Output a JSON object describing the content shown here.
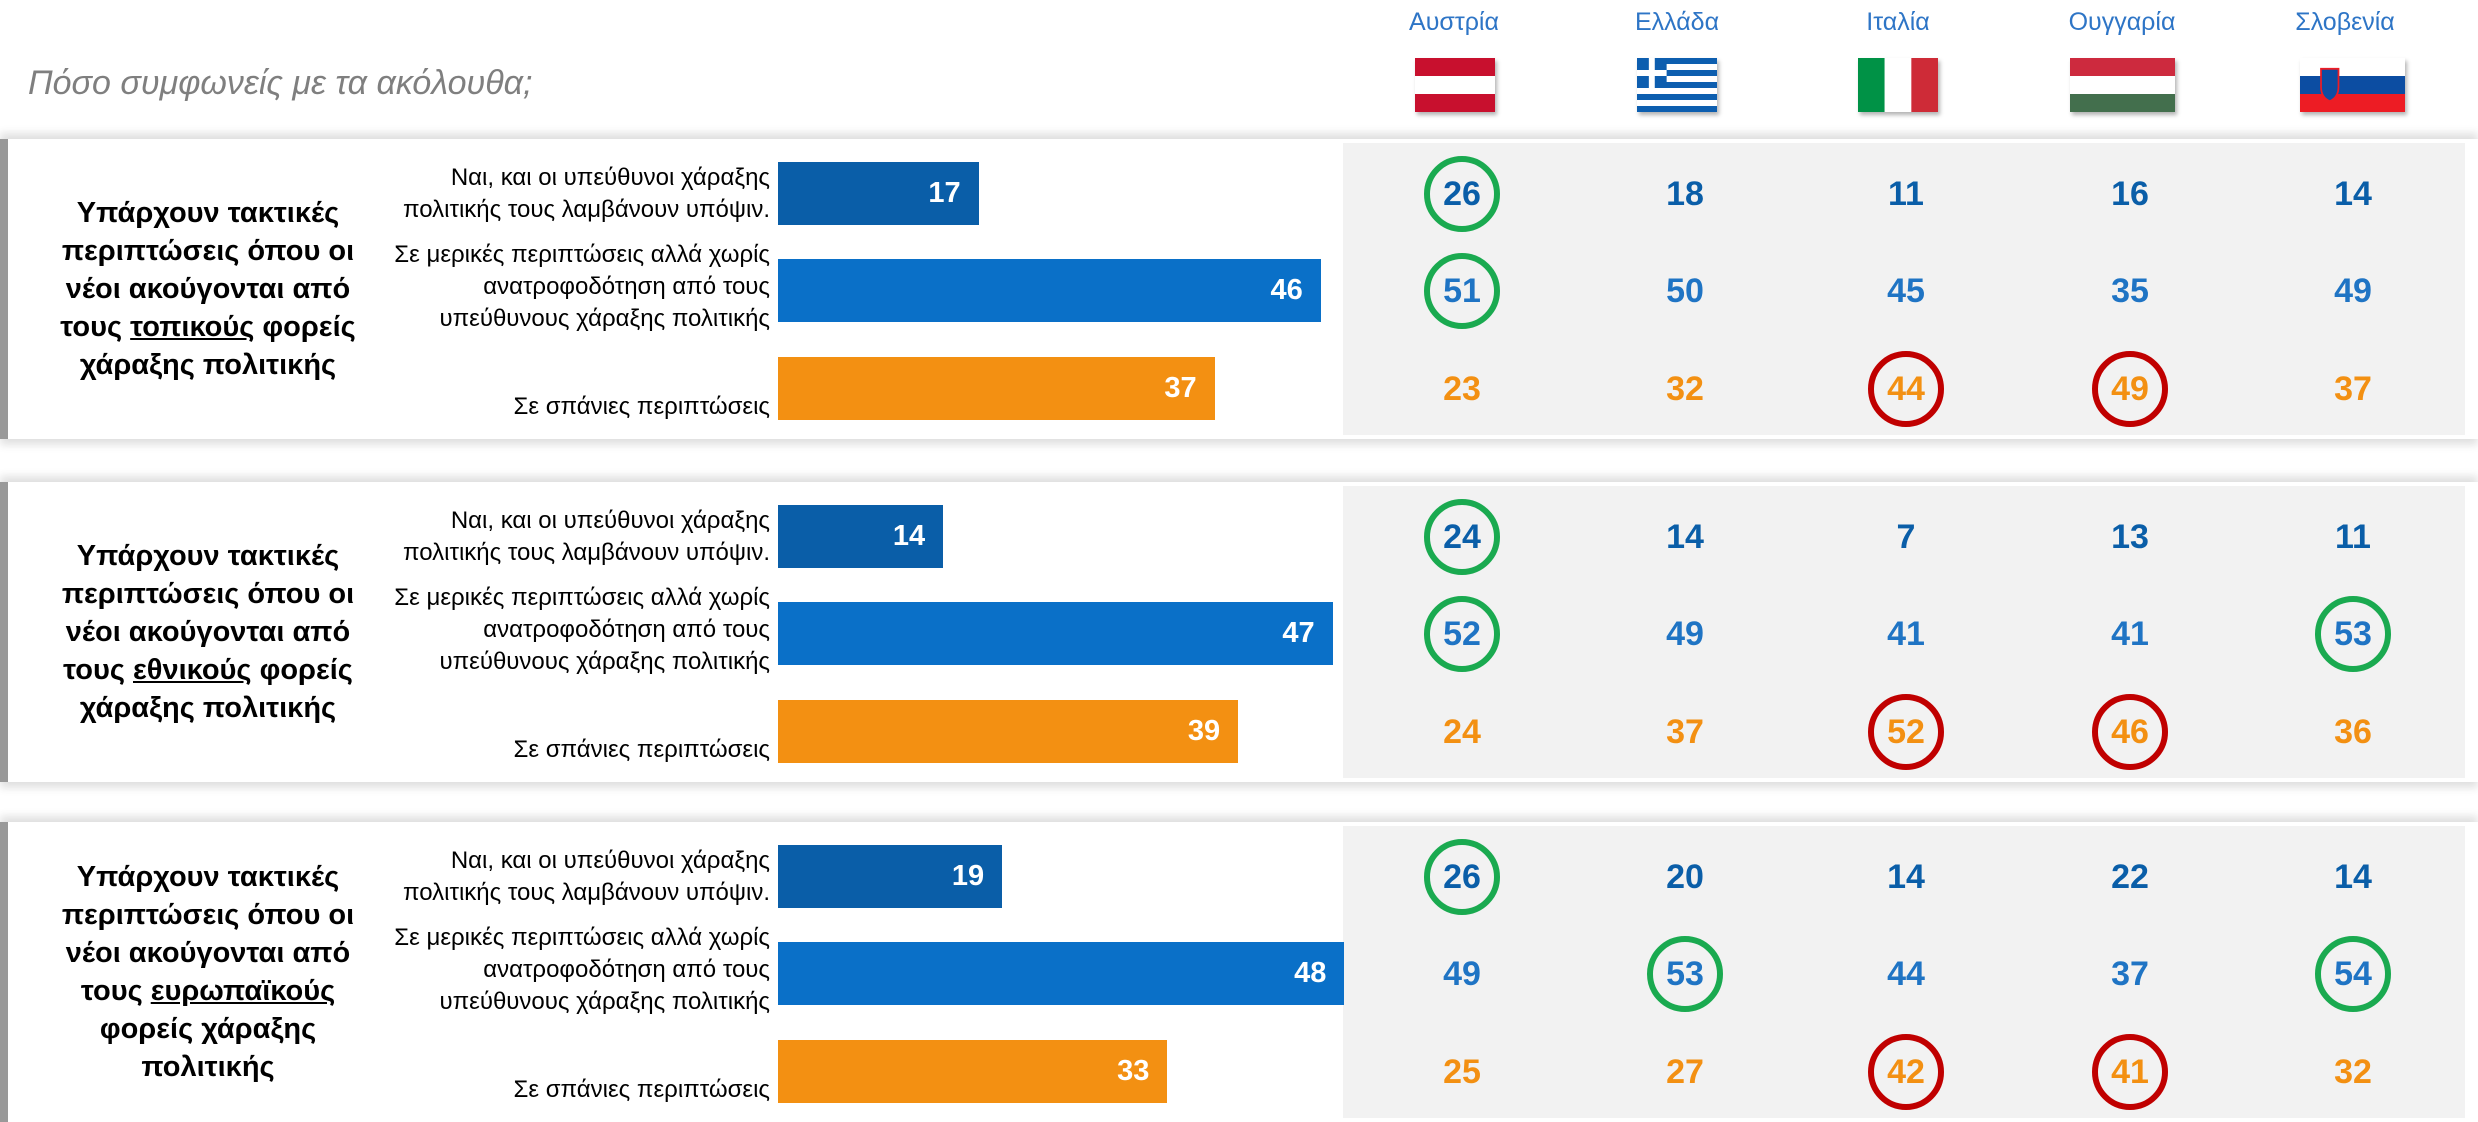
{
  "title": "Πόσο συμφωνείς με τα ακόλουθα;",
  "countries": [
    "Αυστρία",
    "Ελλάδα",
    "Ιταλία",
    "Ουγγαρία",
    "Σλοβενία"
  ],
  "bar_colors": [
    "#0a5ea8",
    "#0a70c8",
    "#f39012"
  ],
  "number_colors": [
    "#0a5ea8",
    "#1f74c4",
    "#f39012"
  ],
  "circle_colors": {
    "green": "#1aaa50",
    "red": "#c00000"
  },
  "panels": [
    {
      "type": "bar",
      "question_before": "Υπάρχουν τακτικές περιπτώσεις όπου οι νέοι ακούγονται   από τους ",
      "question_key": "τοπικούς",
      "question_after": " φορείς χάραξης πολιτικής",
      "categories": [
        "Ναι, και οι υπεύθυνοι χάραξης πολιτικής τους λαμβάνουν υπόψιν.",
        "Σε μερικές περιπτώσεις αλλά χωρίς ανατροφοδότηση από τους υπεύθυνους χάραξης πολιτικής",
        "Σε σπάνιες περιπτώσεις"
      ],
      "values": [
        17,
        46,
        37
      ],
      "country_values": [
        [
          26,
          18,
          11,
          16,
          14
        ],
        [
          51,
          50,
          45,
          35,
          49
        ],
        [
          23,
          32,
          44,
          49,
          37
        ]
      ],
      "circles": [
        [
          "green",
          null,
          null,
          null,
          null
        ],
        [
          "green",
          null,
          null,
          null,
          null
        ],
        [
          null,
          null,
          "red",
          "red",
          null
        ]
      ]
    },
    {
      "type": "bar",
      "question_before": "Υπάρχουν τακτικές περιπτώσεις όπου οι νέοι ακούγονται   από τους ",
      "question_key": "εθνικούς",
      "question_after": " φορείς χάραξης πολιτικής",
      "categories": [
        "Ναι, και οι υπεύθυνοι χάραξης πολιτικής τους λαμβάνουν υπόψιν.",
        "Σε μερικές περιπτώσεις αλλά χωρίς ανατροφοδότηση από τους υπεύθυνους χάραξης πολιτικής",
        "Σε σπάνιες περιπτώσεις"
      ],
      "values": [
        14,
        47,
        39
      ],
      "country_values": [
        [
          24,
          14,
          7,
          13,
          11
        ],
        [
          52,
          49,
          41,
          41,
          53
        ],
        [
          24,
          37,
          52,
          46,
          36
        ]
      ],
      "circles": [
        [
          "green",
          null,
          null,
          null,
          null
        ],
        [
          "green",
          null,
          null,
          null,
          "green"
        ],
        [
          null,
          null,
          "red",
          "red",
          null
        ]
      ]
    },
    {
      "type": "bar",
      "question_before": "Υπάρχουν τακτικές περιπτώσεις όπου οι νέοι ακούγονται   από τους ",
      "question_key": "ευρωπαϊκούς",
      "question_after": " φορείς χάραξης πολιτικής",
      "categories": [
        "Ναι, και οι υπεύθυνοι χάραξης πολιτικής τους λαμβάνουν υπόψιν.",
        "Σε μερικές περιπτώσεις αλλά χωρίς ανατροφοδότηση από τους υπεύθυνους χάραξης πολιτικής",
        "Σε σπάνιες περιπτώσεις"
      ],
      "values": [
        19,
        48,
        33
      ],
      "country_values": [
        [
          26,
          20,
          14,
          22,
          14
        ],
        [
          49,
          53,
          44,
          37,
          54
        ],
        [
          25,
          27,
          42,
          41,
          32
        ]
      ],
      "circles": [
        [
          "green",
          null,
          null,
          null,
          null
        ],
        [
          null,
          "green",
          null,
          null,
          "green"
        ],
        [
          null,
          null,
          "red",
          "red",
          null
        ]
      ]
    }
  ]
}
